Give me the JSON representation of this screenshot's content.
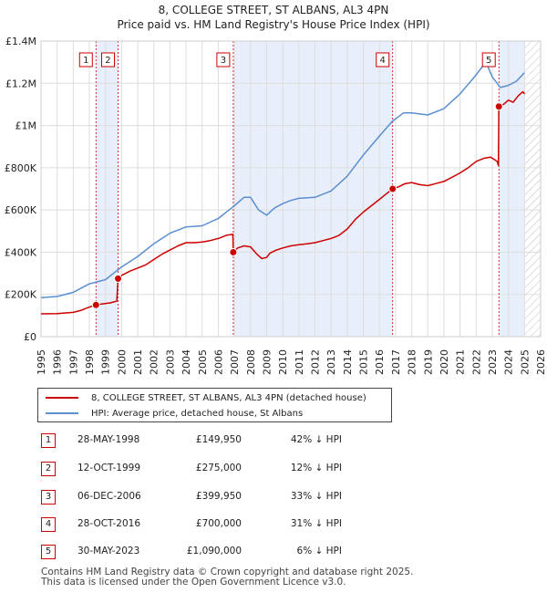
{
  "title": "8, COLLEGE STREET, ST ALBANS, AL3 4PN",
  "subtitle": "Price paid vs. HM Land Registry's House Price Index (HPI)",
  "chart_data": {
    "type": "line",
    "title": "8, COLLEGE STREET, ST ALBANS, AL3 4PN",
    "subtitle": "Price paid vs. HM Land Registry's House Price Index (HPI)",
    "xlim": [
      1995,
      2026
    ],
    "ylim": [
      0,
      1400000
    ],
    "x_ticks": [
      "1995",
      "1996",
      "1997",
      "1998",
      "1999",
      "2000",
      "2001",
      "2002",
      "2003",
      "2004",
      "2005",
      "2006",
      "2007",
      "2008",
      "2009",
      "2010",
      "2011",
      "2012",
      "2013",
      "2014",
      "2015",
      "2016",
      "2017",
      "2018",
      "2019",
      "2020",
      "2021",
      "2022",
      "2023",
      "2024",
      "2025",
      "2026"
    ],
    "y_ticks": [
      {
        "value": 0,
        "label": "£0"
      },
      {
        "value": 200000,
        "label": "£200K"
      },
      {
        "value": 400000,
        "label": "£400K"
      },
      {
        "value": 600000,
        "label": "£600K"
      },
      {
        "value": 800000,
        "label": "£800K"
      },
      {
        "value": 1000000,
        "label": "£1M"
      },
      {
        "value": 1200000,
        "label": "£1.2M"
      },
      {
        "value": 1400000,
        "label": "£1.4M"
      }
    ],
    "grid": true,
    "shaded_ranges": [
      [
        1998.41,
        1999.78
      ],
      [
        2006.93,
        2016.82
      ],
      [
        2023.41,
        2025.0
      ]
    ],
    "hatched_range": [
      2025.0,
      2026.0
    ],
    "series": [
      {
        "name": "8, COLLEGE STREET, ST ALBANS, AL3 4PN (detached house)",
        "color": "#cc0000",
        "x": [
          1995.0,
          1996.0,
          1997.0,
          1997.5,
          1998.0,
          1998.41,
          1998.8,
          1999.3,
          1999.7,
          1999.78,
          2000.0,
          2000.5,
          2001.0,
          2001.5,
          2002.0,
          2002.5,
          2003.0,
          2003.5,
          2004.0,
          2004.5,
          2005.0,
          2005.5,
          2006.0,
          2006.5,
          2006.9,
          2006.93,
          2007.2,
          2007.6,
          2008.0,
          2008.4,
          2008.7,
          2009.0,
          2009.2,
          2009.6,
          2010.0,
          2010.5,
          2011.0,
          2011.5,
          2012.0,
          2012.5,
          2013.0,
          2013.5,
          2014.0,
          2014.5,
          2015.0,
          2015.5,
          2016.0,
          2016.4,
          2016.82,
          2017.2,
          2017.6,
          2018.0,
          2018.5,
          2019.0,
          2019.5,
          2020.0,
          2020.5,
          2021.0,
          2021.5,
          2022.0,
          2022.5,
          2022.9,
          2023.3,
          2023.38,
          2023.41,
          2023.7,
          2024.0,
          2024.3,
          2024.6,
          2024.9,
          2025.0
        ],
        "values": [
          108000,
          109000,
          115000,
          125000,
          140000,
          149950,
          155000,
          160000,
          168000,
          275000,
          290000,
          310000,
          325000,
          340000,
          365000,
          390000,
          410000,
          430000,
          445000,
          445000,
          448000,
          455000,
          465000,
          480000,
          485000,
          399950,
          420000,
          430000,
          425000,
          390000,
          370000,
          375000,
          395000,
          410000,
          420000,
          430000,
          435000,
          440000,
          445000,
          455000,
          465000,
          480000,
          510000,
          555000,
          590000,
          620000,
          650000,
          675000,
          700000,
          710000,
          725000,
          730000,
          720000,
          715000,
          725000,
          735000,
          755000,
          775000,
          800000,
          830000,
          845000,
          850000,
          830000,
          810000,
          1090000,
          1100000,
          1120000,
          1110000,
          1140000,
          1160000,
          1150000
        ]
      },
      {
        "name": "HPI: Average price, detached house, St Albans",
        "color": "#5b8fd0",
        "x": [
          1995.0,
          1996.0,
          1997.0,
          1998.0,
          1999.0,
          2000.0,
          2001.0,
          2002.0,
          2003.0,
          2004.0,
          2005.0,
          2006.0,
          2007.0,
          2007.6,
          2008.0,
          2008.5,
          2009.0,
          2009.5,
          2010.0,
          2010.5,
          2011.0,
          2012.0,
          2013.0,
          2014.0,
          2015.0,
          2016.0,
          2016.8,
          2017.5,
          2018.0,
          2019.0,
          2020.0,
          2021.0,
          2022.0,
          2022.6,
          2023.0,
          2023.5,
          2024.0,
          2024.5,
          2025.0
        ],
        "values": [
          185000,
          190000,
          210000,
          250000,
          270000,
          330000,
          380000,
          440000,
          490000,
          520000,
          525000,
          560000,
          620000,
          660000,
          660000,
          600000,
          575000,
          610000,
          630000,
          645000,
          655000,
          660000,
          690000,
          760000,
          860000,
          950000,
          1020000,
          1060000,
          1060000,
          1050000,
          1080000,
          1150000,
          1240000,
          1300000,
          1230000,
          1180000,
          1190000,
          1210000,
          1250000
        ]
      }
    ],
    "transactions": [
      {
        "id": "1",
        "date": "28-MAY-1998",
        "x": 1998.41,
        "price": 149950,
        "price_label": "£149,950",
        "diff": "42% ↓ HPI"
      },
      {
        "id": "2",
        "date": "12-OCT-1999",
        "x": 1999.78,
        "price": 275000,
        "price_label": "£275,000",
        "diff": "12% ↓ HPI"
      },
      {
        "id": "3",
        "date": "06-DEC-2006",
        "x": 2006.93,
        "price": 399950,
        "price_label": "£399,950",
        "diff": "33% ↓ HPI"
      },
      {
        "id": "4",
        "date": "28-OCT-2016",
        "x": 2016.82,
        "price": 700000,
        "price_label": "£700,000",
        "diff": "31% ↓ HPI"
      },
      {
        "id": "5",
        "date": "30-MAY-2023",
        "x": 2023.41,
        "price": 1090000,
        "price_label": "£1,090,000",
        "diff": "6% ↓ HPI"
      }
    ]
  },
  "legend": {
    "items": [
      {
        "label": "8, COLLEGE STREET, ST ALBANS, AL3 4PN (detached house)",
        "color": "#cc0000"
      },
      {
        "label": "HPI: Average price, detached house, St Albans",
        "color": "#5b8fd0"
      }
    ]
  },
  "footer": {
    "line1": "Contains HM Land Registry data © Crown copyright and database right 2025.",
    "line2": "This data is licensed under the Open Government Licence v3.0."
  }
}
